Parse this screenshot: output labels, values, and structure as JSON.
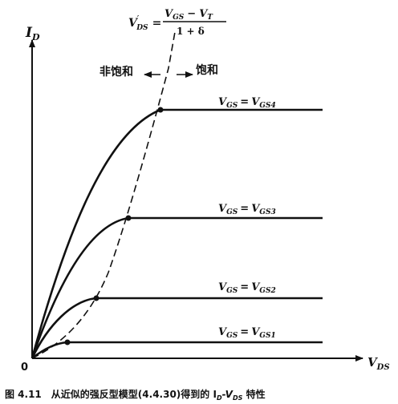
{
  "figure": {
    "caption_number": "图 4.11",
    "caption_text": "从近似的强反型模型(4.4.30)得到的 I",
    "caption_sub_d": "D",
    "caption_dash": "-V",
    "caption_sub_ds": "DS",
    "caption_tail": " 特性",
    "origin": "0",
    "y_axis_main": "I",
    "y_axis_sub": "D",
    "x_axis_main": "V",
    "x_axis_sub": "DS",
    "equation": {
      "lhs_main": "V",
      "lhs_sub": "DS",
      "lhs_prime": "′",
      "eq": "=",
      "num_v1": "V",
      "num_s1": "GS",
      "num_minus": "−",
      "num_v2": "V",
      "num_s2": "T",
      "denominator": "1 + δ"
    },
    "region_nonsat": "非饱和",
    "region_sat": "饱和",
    "curve_labels": [
      {
        "lhs_v": "V",
        "lhs_s": "GS",
        "eq": "=",
        "rhs_v": "V",
        "rhs_s": "GS4"
      },
      {
        "lhs_v": "V",
        "lhs_s": "GS",
        "eq": "=",
        "rhs_v": "V",
        "rhs_s": "GS3"
      },
      {
        "lhs_v": "V",
        "lhs_s": "GS",
        "eq": "=",
        "rhs_v": "V",
        "rhs_s": "GS2"
      },
      {
        "lhs_v": "V",
        "lhs_s": "GS",
        "eq": "=",
        "rhs_v": "V",
        "rhs_s": "GS1"
      }
    ]
  },
  "colors": {
    "ink": "#111111",
    "paper": "#ffffff"
  }
}
